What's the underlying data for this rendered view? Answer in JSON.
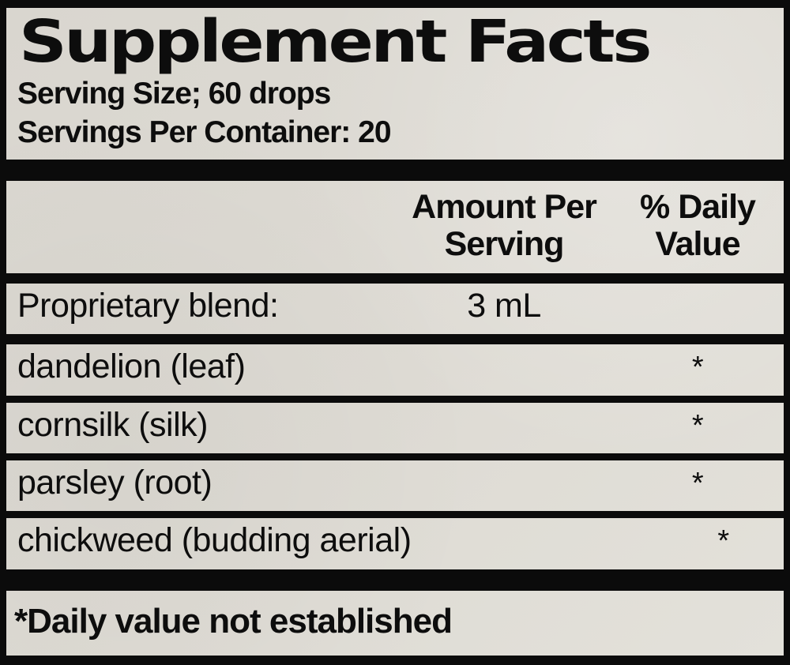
{
  "label": {
    "title": "Supplement Facts",
    "serving_size_line": "Serving Size; 60 drops",
    "servings_per_container_line": "Servings Per Container: 20",
    "columns": {
      "amount_header_line1": "Amount Per",
      "amount_header_line2": "Serving",
      "dv_header_line1": "% Daily",
      "dv_header_line2": "Value"
    },
    "blend": {
      "name": "Proprietary blend:",
      "amount": "3 mL",
      "daily_value": ""
    },
    "ingredients": [
      {
        "name": "dandelion (leaf)",
        "amount": "",
        "daily_value": "*"
      },
      {
        "name": "cornsilk (silk)",
        "amount": "",
        "daily_value": "*"
      },
      {
        "name": "parsley (root)",
        "amount": "",
        "daily_value": "*"
      },
      {
        "name": "chickweed (budding aerial)",
        "amount": "",
        "daily_value": "*"
      }
    ],
    "footnote": "*Daily value not established",
    "colors": {
      "paper": "#dcd9d2",
      "ink": "#0b0b0b"
    }
  }
}
